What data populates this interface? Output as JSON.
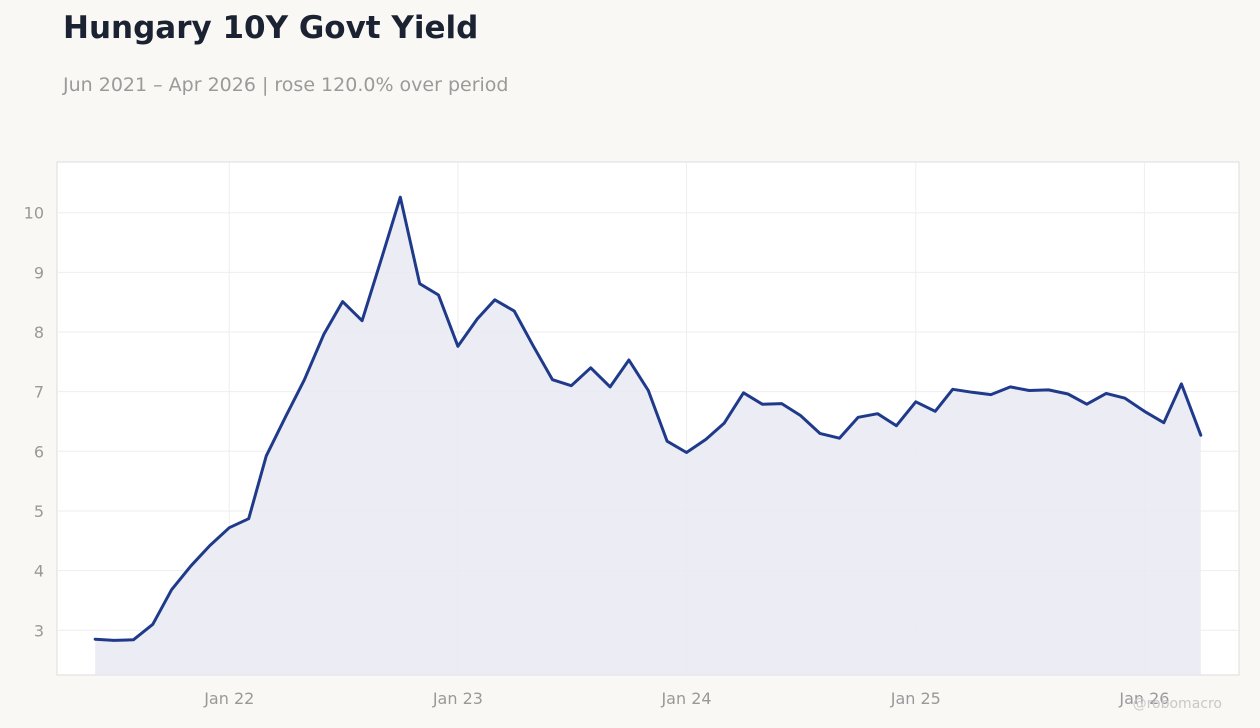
{
  "header": {
    "title": "Hungary 10Y Govt Yield",
    "subtitle": "Jun 2021 – Apr 2026 | rose 120.0% over period"
  },
  "watermark": "@robomacro",
  "colors": {
    "line": "#1f3a8a",
    "area_fill": "#e9eaf2",
    "background": "#f9f8f5",
    "plot_background": "#ffffff",
    "grid": "#eeeeee",
    "tick_label": "#999999"
  },
  "chart_data": {
    "type": "area",
    "title": "Hungary 10Y Govt Yield",
    "subtitle": "Jun 2021 – Apr 2026 | rose 120.0% over period",
    "xlabel": "",
    "ylabel": "",
    "x_ticks": [
      "Jan 22",
      "Jan 23",
      "Jan 24",
      "Jan 25",
      "Jan 26"
    ],
    "y_ticks": [
      3,
      4,
      5,
      6,
      7,
      8,
      9,
      10
    ],
    "xlim": [
      "2021-04-01",
      "2026-06-01"
    ],
    "ylim": [
      2.25,
      10.85
    ],
    "grid": true,
    "legend": "none",
    "series": [
      {
        "x": [
          "2021-06",
          "2021-07",
          "2021-08",
          "2021-09",
          "2021-10",
          "2021-11",
          "2021-12",
          "2022-01",
          "2022-02",
          "2022-03",
          "2022-04",
          "2022-05",
          "2022-06",
          "2022-07",
          "2022-08",
          "2022-09",
          "2022-10",
          "2022-11",
          "2022-12",
          "2023-01",
          "2023-02",
          "2023-03",
          "2023-04",
          "2023-05",
          "2023-06",
          "2023-07",
          "2023-08",
          "2023-09",
          "2023-10",
          "2023-11",
          "2023-12",
          "2024-01",
          "2024-02",
          "2024-03",
          "2024-04",
          "2024-05",
          "2024-06",
          "2024-07",
          "2024-08",
          "2024-09",
          "2024-10",
          "2024-11",
          "2024-12",
          "2025-01",
          "2025-02",
          "2025-03",
          "2025-04",
          "2025-05",
          "2025-06",
          "2025-07",
          "2025-08",
          "2025-09",
          "2025-10",
          "2025-11",
          "2025-12",
          "2026-01",
          "2026-02",
          "2026-03",
          "2026-04"
        ],
        "y": [
          2.85,
          2.83,
          2.84,
          3.1,
          3.68,
          4.08,
          4.42,
          4.72,
          4.87,
          5.92,
          6.58,
          7.2,
          7.96,
          8.51,
          8.19,
          9.23,
          10.26,
          8.81,
          8.62,
          7.76,
          8.22,
          8.54,
          8.35,
          7.77,
          7.2,
          7.1,
          7.4,
          7.08,
          7.53,
          7.02,
          6.17,
          5.98,
          6.2,
          6.47,
          6.98,
          6.79,
          6.8,
          6.6,
          6.3,
          6.22,
          6.57,
          6.63,
          6.43,
          6.83,
          6.67,
          7.04,
          6.99,
          6.95,
          7.08,
          7.02,
          7.03,
          6.96,
          6.79,
          6.97,
          6.89,
          6.67,
          6.48,
          7.13,
          6.27
        ]
      }
    ]
  }
}
